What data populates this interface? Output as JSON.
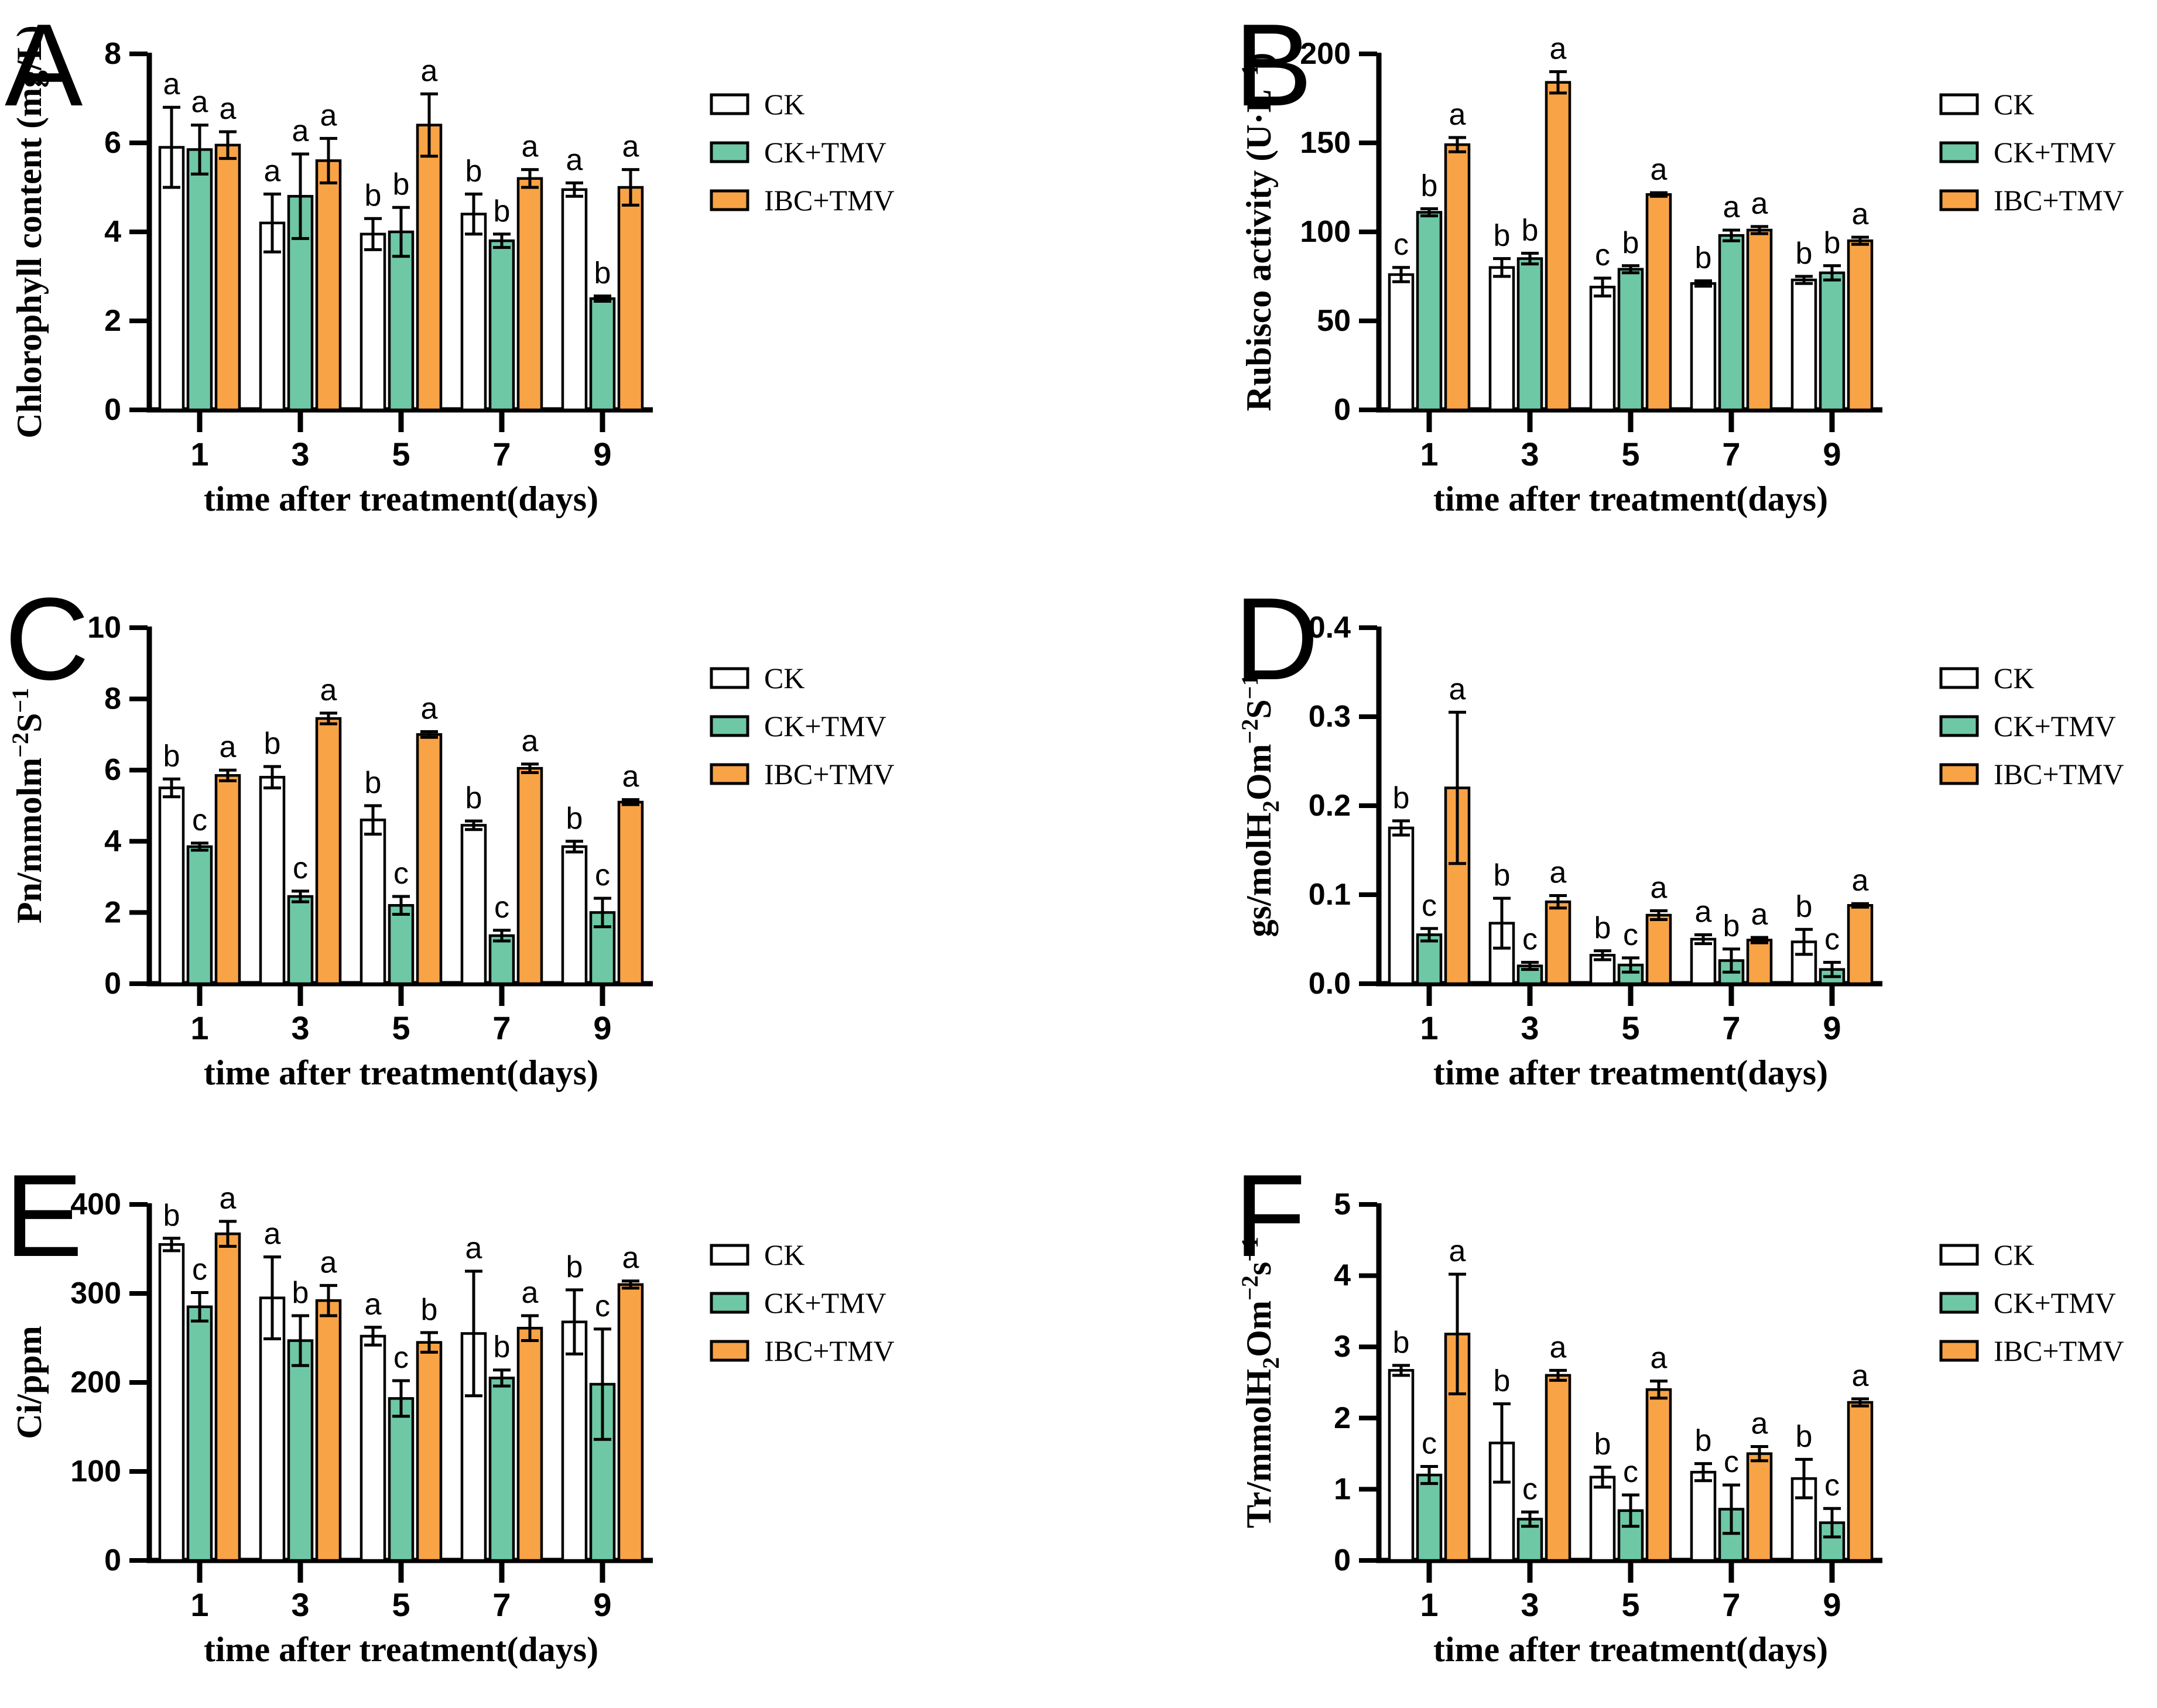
{
  "figure": {
    "background": "#FFFFFF"
  },
  "style": {
    "bar_fill_colors": [
      "#FFFFFF",
      "#6EC8A6",
      "#F8A346"
    ],
    "bar_stroke": "#000000",
    "axis_color": "#000000",
    "text_color": "#000000"
  },
  "legend": {
    "labels": [
      "CK",
      "CK+TMV",
      "IBC+TMV"
    ]
  },
  "chart_data": [
    {
      "panel": "A",
      "type": "bar",
      "ylabel": "Chlorophyll content (mg/L)",
      "ylabel_segments": [
        {
          "t": "Chlorophyll content (mg/L)"
        }
      ],
      "ylim": [
        0,
        8
      ],
      "ytick_values": [
        0,
        2,
        4,
        6,
        8
      ],
      "ytick_labels": [
        "0",
        "2",
        "4",
        "6",
        "8"
      ],
      "categories": [
        "1",
        "3",
        "5",
        "7",
        "9"
      ],
      "xlabel": "time after treatment(days)",
      "legend_position": "right",
      "series": [
        {
          "name": "CK",
          "values": [
            5.9,
            4.2,
            3.95,
            4.4,
            4.95
          ],
          "errors": [
            0.9,
            0.65,
            0.35,
            0.45,
            0.15
          ],
          "sig_letters": [
            "a",
            "a",
            "b",
            "b",
            "a"
          ]
        },
        {
          "name": "CK+TMV",
          "values": [
            5.85,
            4.8,
            4.0,
            3.8,
            2.5
          ],
          "errors": [
            0.55,
            0.95,
            0.55,
            0.15,
            0.06
          ],
          "sig_letters": [
            "a",
            "a",
            "b",
            "b",
            "b"
          ]
        },
        {
          "name": "IBC+TMV",
          "values": [
            5.95,
            5.6,
            6.4,
            5.2,
            5.0
          ],
          "errors": [
            0.3,
            0.5,
            0.7,
            0.2,
            0.4
          ],
          "sig_letters": [
            "a",
            "a",
            "a",
            "a",
            "a"
          ]
        }
      ]
    },
    {
      "panel": "B",
      "type": "bar",
      "ylabel": "Rubisco activity (U·L⁻¹)",
      "ylabel_segments": [
        {
          "t": "Rubisco activity (U·L"
        },
        {
          "t": "−1",
          "s": "sup"
        },
        {
          "t": ")"
        }
      ],
      "ylim": [
        0,
        200
      ],
      "ytick_values": [
        0,
        50,
        100,
        150,
        200
      ],
      "ytick_labels": [
        "0",
        "50",
        "100",
        "150",
        "200"
      ],
      "categories": [
        "1",
        "3",
        "5",
        "7",
        "9"
      ],
      "xlabel": "time after treatment(days)",
      "legend_position": "right",
      "series": [
        {
          "name": "CK",
          "values": [
            76,
            80,
            69,
            71,
            73
          ],
          "errors": [
            4,
            5,
            5,
            1.5,
            2
          ],
          "sig_letters": [
            "c",
            "b",
            "c",
            "b",
            "b"
          ]
        },
        {
          "name": "CK+TMV",
          "values": [
            111,
            85,
            79,
            98,
            77
          ],
          "errors": [
            2,
            3,
            2,
            3,
            4
          ],
          "sig_letters": [
            "b",
            "b",
            "b",
            "a",
            "b"
          ]
        },
        {
          "name": "IBC+TMV",
          "values": [
            149,
            184,
            121,
            101,
            95
          ],
          "errors": [
            4,
            6,
            1,
            2,
            2
          ],
          "sig_letters": [
            "a",
            "a",
            "a",
            "a",
            "a"
          ]
        }
      ]
    },
    {
      "panel": "C",
      "type": "bar",
      "ylabel": "Pn/mmolm⁻²S⁻¹",
      "ylabel_segments": [
        {
          "t": "Pn/mmolm"
        },
        {
          "t": "−2",
          "s": "sup"
        },
        {
          "t": "S"
        },
        {
          "t": "−1",
          "s": "sup"
        }
      ],
      "ylim": [
        0,
        10
      ],
      "ytick_values": [
        0,
        2,
        4,
        6,
        8,
        10
      ],
      "ytick_labels": [
        "0",
        "2",
        "4",
        "6",
        "8",
        "10"
      ],
      "categories": [
        "1",
        "3",
        "5",
        "7",
        "9"
      ],
      "xlabel": "time after treatment(days)",
      "legend_position": "right",
      "series": [
        {
          "name": "CK",
          "values": [
            5.5,
            5.8,
            4.6,
            4.45,
            3.85
          ],
          "errors": [
            0.25,
            0.3,
            0.4,
            0.12,
            0.15
          ],
          "sig_letters": [
            "b",
            "b",
            "b",
            "b",
            "b"
          ]
        },
        {
          "name": "CK+TMV",
          "values": [
            3.85,
            2.45,
            2.2,
            1.35,
            2.0
          ],
          "errors": [
            0.1,
            0.15,
            0.25,
            0.15,
            0.4
          ],
          "sig_letters": [
            "c",
            "c",
            "c",
            "c",
            "c"
          ]
        },
        {
          "name": "IBC+TMV",
          "values": [
            5.85,
            7.45,
            7.0,
            6.05,
            5.1
          ],
          "errors": [
            0.15,
            0.15,
            0.08,
            0.12,
            0.07
          ],
          "sig_letters": [
            "a",
            "a",
            "a",
            "a",
            "a"
          ]
        }
      ]
    },
    {
      "panel": "D",
      "type": "bar",
      "ylabel": "gs/molH₂Om⁻²S⁻¹",
      "ylabel_segments": [
        {
          "t": "gs/molH"
        },
        {
          "t": "2",
          "s": "sub"
        },
        {
          "t": "Om"
        },
        {
          "t": "−2",
          "s": "sup"
        },
        {
          "t": "S"
        },
        {
          "t": "−1",
          "s": "sup"
        }
      ],
      "ylim": [
        0,
        0.4
      ],
      "ytick_values": [
        0,
        0.1,
        0.2,
        0.3,
        0.4
      ],
      "ytick_labels": [
        "0.0",
        "0.1",
        "0.2",
        "0.3",
        "0.4"
      ],
      "categories": [
        "1",
        "3",
        "5",
        "7",
        "9"
      ],
      "xlabel": "time after treatment(days)",
      "legend_position": "right",
      "series": [
        {
          "name": "CK",
          "values": [
            0.175,
            0.068,
            0.032,
            0.05,
            0.047
          ],
          "errors": [
            0.008,
            0.028,
            0.005,
            0.005,
            0.014
          ],
          "sig_letters": [
            "b",
            "b",
            "b",
            "a",
            "b"
          ]
        },
        {
          "name": "CK+TMV",
          "values": [
            0.055,
            0.02,
            0.021,
            0.026,
            0.016
          ],
          "errors": [
            0.007,
            0.004,
            0.008,
            0.013,
            0.008
          ],
          "sig_letters": [
            "c",
            "c",
            "c",
            "b",
            "c"
          ]
        },
        {
          "name": "IBC+TMV",
          "values": [
            0.22,
            0.092,
            0.077,
            0.049,
            0.088
          ],
          "errors": [
            0.085,
            0.007,
            0.005,
            0.003,
            0.002
          ],
          "sig_letters": [
            "a",
            "a",
            "a",
            "a",
            "a"
          ]
        }
      ]
    },
    {
      "panel": "E",
      "type": "bar",
      "ylabel": "Ci/ppm",
      "ylabel_segments": [
        {
          "t": "Ci/ppm"
        }
      ],
      "ylim": [
        0,
        400
      ],
      "ytick_values": [
        0,
        100,
        200,
        300,
        400
      ],
      "ytick_labels": [
        "0",
        "100",
        "200",
        "300",
        "400"
      ],
      "categories": [
        "1",
        "3",
        "5",
        "7",
        "9"
      ],
      "xlabel": "time after treatment(days)",
      "legend_position": "right",
      "series": [
        {
          "name": "CK",
          "values": [
            355,
            295,
            252,
            255,
            268
          ],
          "errors": [
            7,
            46,
            10,
            70,
            36
          ],
          "sig_letters": [
            "b",
            "a",
            "a",
            "a",
            "b"
          ]
        },
        {
          "name": "CK+TMV",
          "values": [
            285,
            247,
            182,
            205,
            198
          ],
          "errors": [
            16,
            28,
            20,
            9,
            62
          ],
          "sig_letters": [
            "c",
            "b",
            "c",
            "b",
            "c"
          ]
        },
        {
          "name": "IBC+TMV",
          "values": [
            367,
            292,
            245,
            261,
            310
          ],
          "errors": [
            14,
            17,
            11,
            14,
            4
          ],
          "sig_letters": [
            "a",
            "a",
            "b",
            "a",
            "a"
          ]
        }
      ]
    },
    {
      "panel": "F",
      "type": "bar",
      "ylabel": "Tr/mmolH₂Om⁻²s⁻¹",
      "ylabel_segments": [
        {
          "t": "Tr/mmolH"
        },
        {
          "t": "2",
          "s": "sub"
        },
        {
          "t": "Om"
        },
        {
          "t": "−2",
          "s": "sup"
        },
        {
          "t": "s"
        },
        {
          "t": "−1",
          "s": "sup"
        }
      ],
      "ylim": [
        0,
        5
      ],
      "ytick_values": [
        0,
        1,
        2,
        3,
        4,
        5
      ],
      "ytick_labels": [
        "0",
        "1",
        "2",
        "3",
        "4",
        "5"
      ],
      "categories": [
        "1",
        "3",
        "5",
        "7",
        "9"
      ],
      "xlabel": "time after treatment(days)",
      "legend_position": "right",
      "series": [
        {
          "name": "CK",
          "values": [
            2.67,
            1.65,
            1.17,
            1.24,
            1.15
          ],
          "errors": [
            0.07,
            0.55,
            0.14,
            0.12,
            0.27
          ],
          "sig_letters": [
            "b",
            "b",
            "b",
            "b",
            "b"
          ]
        },
        {
          "name": "CK+TMV",
          "values": [
            1.2,
            0.58,
            0.7,
            0.72,
            0.53
          ],
          "errors": [
            0.12,
            0.1,
            0.22,
            0.34,
            0.2
          ],
          "sig_letters": [
            "c",
            "c",
            "c",
            "c",
            "c"
          ]
        },
        {
          "name": "IBC+TMV",
          "values": [
            3.18,
            2.6,
            2.4,
            1.5,
            2.22
          ],
          "errors": [
            0.84,
            0.07,
            0.12,
            0.1,
            0.05
          ],
          "sig_letters": [
            "a",
            "a",
            "a",
            "a",
            "a"
          ]
        }
      ]
    }
  ]
}
